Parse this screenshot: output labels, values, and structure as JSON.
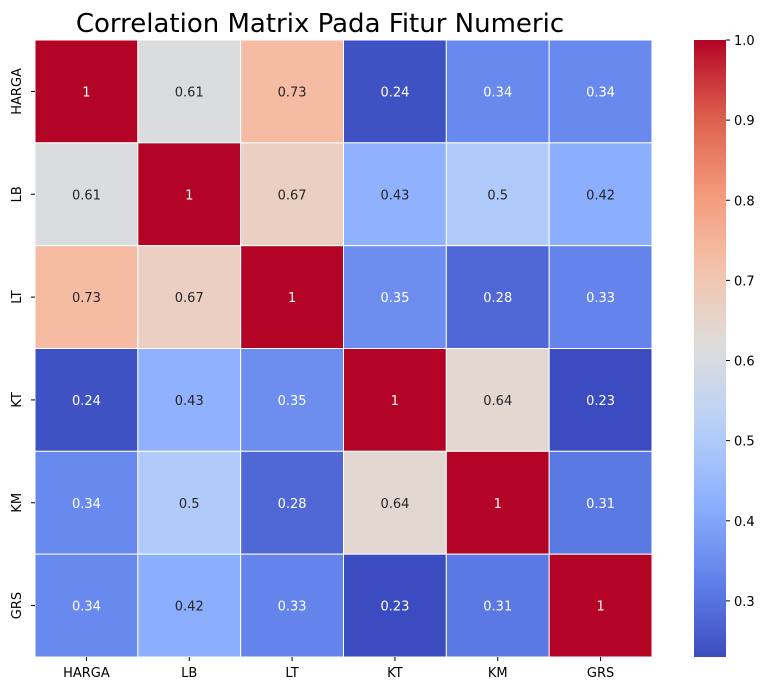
{
  "chart_data": {
    "type": "heatmap",
    "title": "Correlation Matrix Pada Fitur Numeric",
    "xlabel": "",
    "ylabel": "",
    "x_categories": [
      "HARGA",
      "LB",
      "LT",
      "KT",
      "KM",
      "GRS"
    ],
    "y_categories": [
      "HARGA",
      "LB",
      "LT",
      "KT",
      "KM",
      "GRS"
    ],
    "values": [
      [
        1,
        0.61,
        0.73,
        0.24,
        0.34,
        0.34
      ],
      [
        0.61,
        1,
        0.67,
        0.43,
        0.5,
        0.42
      ],
      [
        0.73,
        0.67,
        1,
        0.35,
        0.28,
        0.33
      ],
      [
        0.24,
        0.43,
        0.35,
        1,
        0.64,
        0.23
      ],
      [
        0.34,
        0.5,
        0.28,
        0.64,
        1,
        0.31
      ],
      [
        0.34,
        0.42,
        0.33,
        0.23,
        0.31,
        1
      ]
    ],
    "annotations": [
      [
        "1",
        "0.61",
        "0.73",
        "0.24",
        "0.34",
        "0.34"
      ],
      [
        "0.61",
        "1",
        "0.67",
        "0.43",
        "0.5",
        "0.42"
      ],
      [
        "0.73",
        "0.67",
        "1",
        "0.35",
        "0.28",
        "0.33"
      ],
      [
        "0.24",
        "0.43",
        "0.35",
        "1",
        "0.64",
        "0.23"
      ],
      [
        "0.34",
        "0.5",
        "0.28",
        "0.64",
        "1",
        "0.31"
      ],
      [
        "0.34",
        "0.42",
        "0.33",
        "0.23",
        "0.31",
        "1"
      ]
    ],
    "colormap": "coolwarm",
    "vmin": 0.23,
    "vmax": 1.0,
    "colorbar": {
      "ticks": [
        0.3,
        0.4,
        0.5,
        0.6,
        0.7,
        0.8,
        0.9,
        1.0
      ],
      "tick_labels": [
        "0.3",
        "0.4",
        "0.5",
        "0.6",
        "0.7",
        "0.8",
        "0.9",
        "1.0"
      ],
      "position": "right"
    },
    "cell_border_color": "#ffffff",
    "annotation_light_color": "#ffffff",
    "annotation_dark_color": "#262626"
  }
}
